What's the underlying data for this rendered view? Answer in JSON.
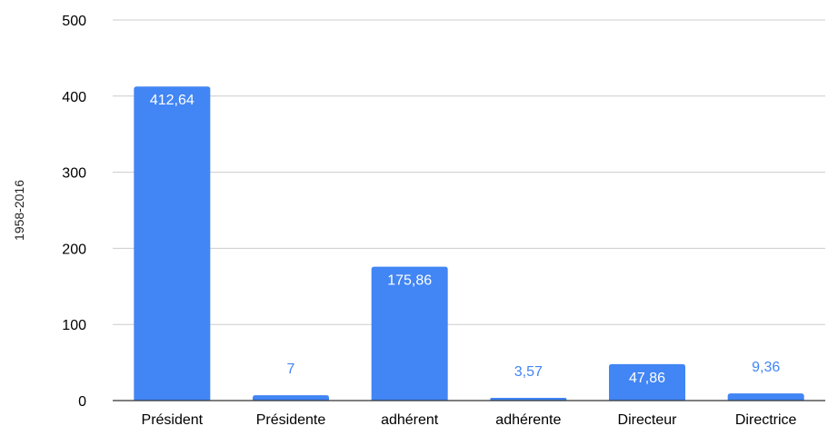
{
  "chart_data": {
    "type": "bar",
    "title": "",
    "xlabel": "",
    "ylabel": "1958-2016",
    "categories": [
      "Président",
      "Présidente",
      "adhérent",
      "adhérente",
      "Directeur",
      "Directrice"
    ],
    "values": [
      412.64,
      7,
      175.86,
      3.57,
      47.86,
      9.36
    ],
    "data_labels": [
      "412,64",
      "7",
      "175,86",
      "3,57",
      "47,86",
      "9,36"
    ],
    "ylim": [
      0,
      500
    ],
    "yticks": [
      0,
      100,
      200,
      300,
      400,
      500
    ],
    "ytick_labels": [
      "0",
      "100",
      "200",
      "300",
      "400",
      "500"
    ],
    "grid": true,
    "legend": "none",
    "colors": {
      "bar": "#4285f4",
      "grid": "#cccccc",
      "axis": "#333333",
      "label_inside": "#ffffff",
      "label_outside": "#4285f4"
    }
  }
}
